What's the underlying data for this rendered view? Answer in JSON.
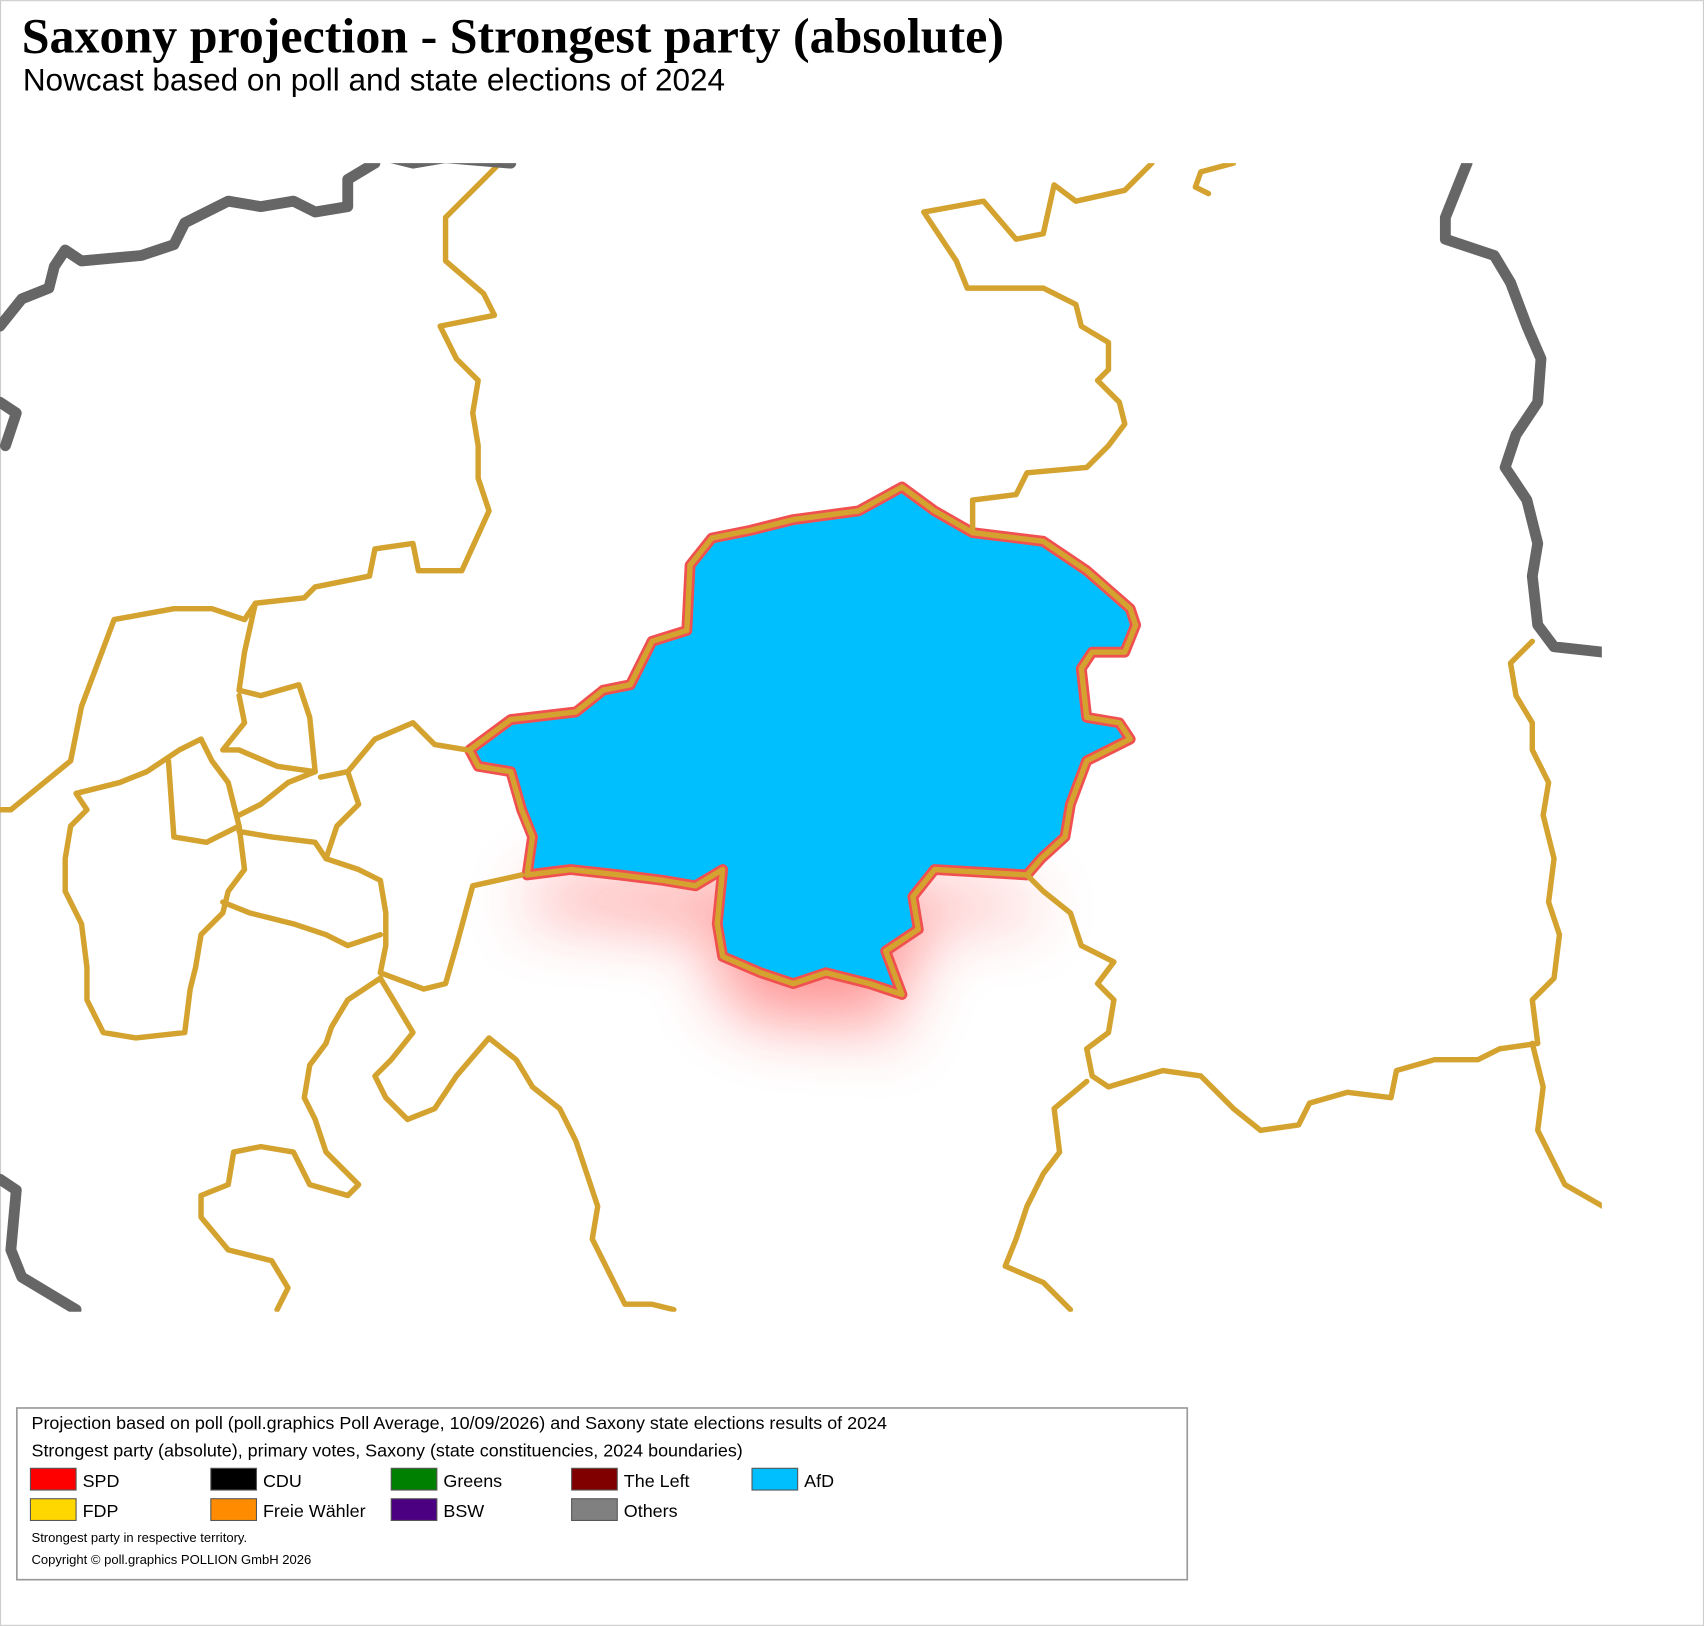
{
  "header": {
    "title": "Saxony projection - Strongest party (absolute)",
    "subtitle": "Nowcast based on poll and state elections of 2024"
  },
  "legend": {
    "lines": [
      "Projection based on poll (poll.graphics Poll Average, 10/09/2026) and Saxony state elections results of 2024",
      "Strongest party (absolute), primary votes, Saxony (state constituencies, 2024 boundaries)"
    ],
    "items": [
      {
        "name": "SPD",
        "color": "#ff0000"
      },
      {
        "name": "CDU",
        "color": "#000000"
      },
      {
        "name": "Greens",
        "color": "#008000"
      },
      {
        "name": "The Left",
        "color": "#800000"
      },
      {
        "name": "AfD",
        "color": "#00bfff"
      },
      {
        "name": "FDP",
        "color": "#ffd700"
      },
      {
        "name": "Freie Wähler",
        "color": "#ff8c00"
      },
      {
        "name": "BSW",
        "color": "#4b0082"
      },
      {
        "name": "Others",
        "color": "#808080"
      }
    ],
    "notes": [
      "Strongest party in respective territory.",
      "Copyright © poll.graphics POLLION GmbH 2026"
    ]
  }
}
